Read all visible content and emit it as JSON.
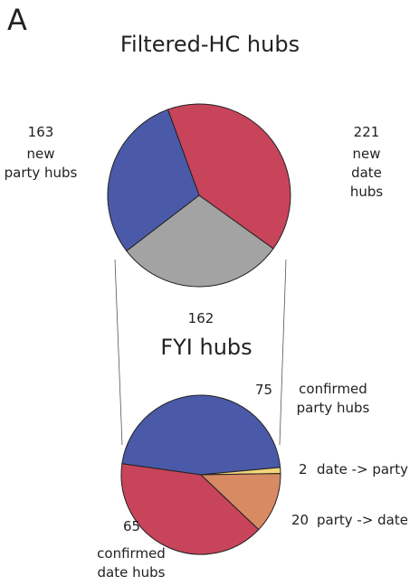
{
  "panel_label": "A",
  "chart_data": [
    {
      "type": "pie",
      "title": "Filtered-HC hubs",
      "categories": [
        "new\nparty hubs",
        "new\ndate hubs",
        null
      ],
      "values": [
        163,
        221,
        162
      ],
      "colors": [
        "#4a5aa8",
        "#c8445a",
        "#a3a3a3"
      ]
    },
    {
      "type": "pie",
      "title": "FYI hubs",
      "categories": [
        "confirmed\nparty hubs",
        "date -> party",
        "party -> date",
        "confirmed\ndate hubs"
      ],
      "values": [
        75,
        2,
        20,
        65
      ],
      "colors": [
        "#4a5aa8",
        "#f2d67a",
        "#d88a63",
        "#c8445a"
      ]
    }
  ]
}
